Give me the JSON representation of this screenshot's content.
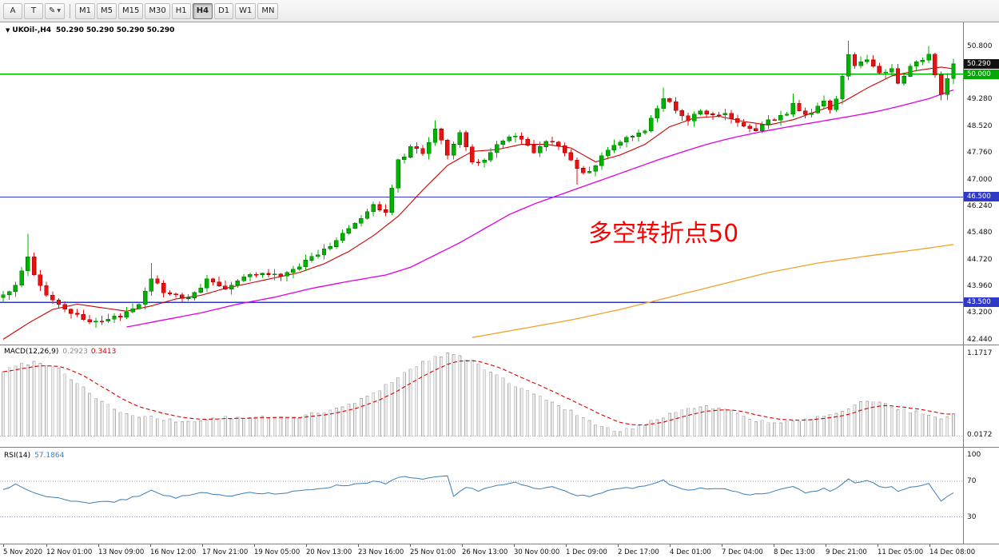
{
  "toolbar": {
    "tools": [
      {
        "name": "font-tool-button",
        "label": "A"
      },
      {
        "name": "text-tool-button",
        "label": "T"
      },
      {
        "name": "draw-tool-button",
        "label": "✎",
        "caret": "▼"
      }
    ],
    "timeframes": [
      "M1",
      "M5",
      "M15",
      "M30",
      "H1",
      "H4",
      "D1",
      "W1",
      "MN"
    ],
    "active_timeframe": "H4"
  },
  "chart_data": {
    "type": "candlestick+indicators",
    "symbol": "UKOil-",
    "timeframe": "H4",
    "title": "UKOil-,H4",
    "ohlc_readout": "50.290 50.290 50.290 50.290",
    "annotation": {
      "text": "多空转折点50",
      "color": "#FF0000"
    },
    "main": {
      "ylim": [
        42.3,
        51.45
      ],
      "axis_labels": [
        "50.800",
        "49.280",
        "48.520",
        "47.760",
        "47.000",
        "46.240",
        "45.480",
        "44.720",
        "43.960",
        "43.200",
        "42.440"
      ],
      "badges": [
        {
          "text": "50.290",
          "price": 50.29,
          "bg": "#111111"
        },
        {
          "text": "50.000",
          "price": 50.0,
          "bg": "#00A800"
        },
        {
          "text": "46.500",
          "price": 46.5,
          "bg": "#3038C8"
        },
        {
          "text": "43.500",
          "price": 43.5,
          "bg": "#3038C8"
        }
      ],
      "hlines": [
        {
          "price": 50.0,
          "color": "#00B300"
        },
        {
          "price": 46.5,
          "color": "#3038C8"
        },
        {
          "price": 43.5,
          "color": "#3038C8"
        }
      ],
      "candle_count": 155,
      "close_anchors": [
        [
          0,
          43.7
        ],
        [
          2,
          44.0
        ],
        [
          4,
          44.85
        ],
        [
          5,
          44.3
        ],
        [
          7,
          43.75
        ],
        [
          10,
          43.3
        ],
        [
          13,
          43.0
        ],
        [
          16,
          42.98
        ],
        [
          19,
          43.1
        ],
        [
          22,
          43.5
        ],
        [
          24,
          44.2
        ],
        [
          26,
          43.8
        ],
        [
          29,
          43.6
        ],
        [
          31,
          43.75
        ],
        [
          33,
          44.15
        ],
        [
          36,
          43.9
        ],
        [
          38,
          44.1
        ],
        [
          41,
          44.35
        ],
        [
          44,
          44.25
        ],
        [
          46,
          44.3
        ],
        [
          48,
          44.55
        ],
        [
          50,
          44.8
        ],
        [
          52,
          45.0
        ],
        [
          55,
          45.45
        ],
        [
          58,
          45.85
        ],
        [
          60,
          46.25
        ],
        [
          62,
          46.1
        ],
        [
          64,
          47.5
        ],
        [
          66,
          47.9
        ],
        [
          68,
          47.75
        ],
        [
          70,
          48.45
        ],
        [
          72,
          47.75
        ],
        [
          74,
          48.35
        ],
        [
          76,
          47.45
        ],
        [
          78,
          47.6
        ],
        [
          80,
          47.95
        ],
        [
          82,
          48.2
        ],
        [
          84,
          48.15
        ],
        [
          86,
          47.8
        ],
        [
          88,
          48.05
        ],
        [
          90,
          48.0
        ],
        [
          92,
          47.5
        ],
        [
          94,
          47.15
        ],
        [
          96,
          47.4
        ],
        [
          98,
          47.85
        ],
        [
          100,
          48.1
        ],
        [
          102,
          48.2
        ],
        [
          104,
          48.4
        ],
        [
          107,
          49.35
        ],
        [
          109,
          48.95
        ],
        [
          111,
          48.7
        ],
        [
          113,
          48.95
        ],
        [
          115,
          48.8
        ],
        [
          117,
          48.85
        ],
        [
          119,
          48.6
        ],
        [
          122,
          48.4
        ],
        [
          124,
          48.65
        ],
        [
          127,
          48.9
        ],
        [
          128,
          49.15
        ],
        [
          130,
          48.8
        ],
        [
          133,
          49.2
        ],
        [
          134,
          49.0
        ],
        [
          135,
          49.3
        ],
        [
          137,
          50.6
        ],
        [
          138,
          50.2
        ],
        [
          140,
          50.45
        ],
        [
          142,
          50.0
        ],
        [
          144,
          50.15
        ],
        [
          145,
          49.8
        ],
        [
          147,
          50.2
        ],
        [
          149,
          50.45
        ],
        [
          150,
          50.55
        ],
        [
          152,
          49.45
        ],
        [
          153,
          49.9
        ],
        [
          154,
          50.29
        ]
      ],
      "wick_events": [
        {
          "i": 4,
          "high": 45.45
        },
        {
          "i": 16,
          "low": 42.86
        },
        {
          "i": 24,
          "high": 44.62
        },
        {
          "i": 70,
          "high": 48.68
        },
        {
          "i": 93,
          "low": 46.85
        },
        {
          "i": 107,
          "high": 49.62
        },
        {
          "i": 128,
          "high": 49.45
        },
        {
          "i": 137,
          "high": 50.95
        },
        {
          "i": 150,
          "high": 50.8
        },
        {
          "i": 152,
          "low": 49.25
        }
      ],
      "ma_red_anchors": [
        [
          0,
          42.45
        ],
        [
          4,
          42.9
        ],
        [
          8,
          43.3
        ],
        [
          12,
          43.45
        ],
        [
          16,
          43.35
        ],
        [
          20,
          43.25
        ],
        [
          24,
          43.4
        ],
        [
          28,
          43.6
        ],
        [
          32,
          43.7
        ],
        [
          36,
          43.9
        ],
        [
          40,
          44.05
        ],
        [
          44,
          44.2
        ],
        [
          48,
          44.35
        ],
        [
          52,
          44.6
        ],
        [
          56,
          44.95
        ],
        [
          60,
          45.4
        ],
        [
          64,
          45.95
        ],
        [
          68,
          46.7
        ],
        [
          72,
          47.4
        ],
        [
          76,
          47.8
        ],
        [
          80,
          47.85
        ],
        [
          84,
          48.0
        ],
        [
          88,
          48.0
        ],
        [
          92,
          47.9
        ],
        [
          96,
          47.5
        ],
        [
          100,
          47.7
        ],
        [
          104,
          48.0
        ],
        [
          108,
          48.5
        ],
        [
          112,
          48.75
        ],
        [
          116,
          48.8
        ],
        [
          120,
          48.65
        ],
        [
          124,
          48.55
        ],
        [
          128,
          48.7
        ],
        [
          132,
          48.95
        ],
        [
          136,
          49.2
        ],
        [
          140,
          49.6
        ],
        [
          144,
          49.95
        ],
        [
          148,
          50.1
        ],
        [
          152,
          50.2
        ],
        [
          154,
          50.15
        ]
      ],
      "ma_magenta_anchors": [
        [
          20,
          42.8
        ],
        [
          26,
          43.0
        ],
        [
          32,
          43.2
        ],
        [
          38,
          43.45
        ],
        [
          44,
          43.65
        ],
        [
          50,
          43.9
        ],
        [
          56,
          44.1
        ],
        [
          62,
          44.28
        ],
        [
          66,
          44.5
        ],
        [
          70,
          44.85
        ],
        [
          74,
          45.2
        ],
        [
          78,
          45.6
        ],
        [
          82,
          46.0
        ],
        [
          86,
          46.3
        ],
        [
          90,
          46.55
        ],
        [
          94,
          46.8
        ],
        [
          98,
          47.05
        ],
        [
          102,
          47.3
        ],
        [
          106,
          47.55
        ],
        [
          110,
          47.78
        ],
        [
          114,
          48.0
        ],
        [
          118,
          48.18
        ],
        [
          122,
          48.33
        ],
        [
          126,
          48.46
        ],
        [
          130,
          48.58
        ],
        [
          134,
          48.7
        ],
        [
          138,
          48.82
        ],
        [
          142,
          48.95
        ],
        [
          146,
          49.12
        ],
        [
          150,
          49.3
        ],
        [
          154,
          49.55
        ]
      ],
      "ma_orange_anchors": [
        [
          76,
          42.5
        ],
        [
          84,
          42.75
        ],
        [
          92,
          43.0
        ],
        [
          100,
          43.3
        ],
        [
          108,
          43.65
        ],
        [
          116,
          44.0
        ],
        [
          124,
          44.35
        ],
        [
          132,
          44.62
        ],
        [
          140,
          44.82
        ],
        [
          148,
          45.0
        ],
        [
          154,
          45.15
        ]
      ],
      "colors": {
        "up": "#00B300",
        "up_edge": "#007A00",
        "down": "#E81212",
        "down_edge": "#A80000",
        "ma_red": "#CC0000",
        "ma_magenta": "#E000E0",
        "ma_orange": "#EFA42C"
      }
    },
    "macd": {
      "label": "MACD(12,26,9)",
      "value_main": "0.2923",
      "value_signal": "0.3413",
      "ylim": [
        -0.15,
        1.28
      ],
      "axis_labels": [
        {
          "text": "1.1717",
          "v": 1.1717
        },
        {
          "text": "0.0172",
          "v": 0.0172
        }
      ],
      "anchors": [
        [
          0,
          0.92
        ],
        [
          3,
          1.02
        ],
        [
          6,
          1.05
        ],
        [
          9,
          0.95
        ],
        [
          12,
          0.75
        ],
        [
          15,
          0.55
        ],
        [
          18,
          0.38
        ],
        [
          21,
          0.28
        ],
        [
          24,
          0.26
        ],
        [
          27,
          0.22
        ],
        [
          30,
          0.2
        ],
        [
          33,
          0.24
        ],
        [
          36,
          0.26
        ],
        [
          39,
          0.25
        ],
        [
          42,
          0.27
        ],
        [
          45,
          0.26
        ],
        [
          48,
          0.28
        ],
        [
          51,
          0.32
        ],
        [
          54,
          0.38
        ],
        [
          57,
          0.48
        ],
        [
          60,
          0.6
        ],
        [
          63,
          0.78
        ],
        [
          66,
          0.95
        ],
        [
          69,
          1.08
        ],
        [
          72,
          1.17
        ],
        [
          75,
          1.1
        ],
        [
          78,
          0.95
        ],
        [
          81,
          0.8
        ],
        [
          84,
          0.68
        ],
        [
          87,
          0.55
        ],
        [
          90,
          0.45
        ],
        [
          93,
          0.3
        ],
        [
          96,
          0.15
        ],
        [
          99,
          0.08
        ],
        [
          102,
          0.1
        ],
        [
          105,
          0.2
        ],
        [
          108,
          0.32
        ],
        [
          111,
          0.4
        ],
        [
          114,
          0.42
        ],
        [
          117,
          0.38
        ],
        [
          120,
          0.28
        ],
        [
          123,
          0.2
        ],
        [
          126,
          0.18
        ],
        [
          129,
          0.22
        ],
        [
          132,
          0.26
        ],
        [
          135,
          0.3
        ],
        [
          138,
          0.45
        ],
        [
          141,
          0.5
        ],
        [
          144,
          0.42
        ],
        [
          147,
          0.35
        ],
        [
          150,
          0.3
        ],
        [
          152,
          0.22
        ],
        [
          154,
          0.2923
        ]
      ],
      "colors": {
        "hist_fill": "#ECECEC",
        "hist_edge": "#AFAFAF",
        "signal": "#DD0000"
      }
    },
    "rsi": {
      "label": "RSI(14)",
      "value": "57.1864",
      "ylim": [
        0,
        107
      ],
      "levels": [
        70,
        30
      ],
      "axis_labels": [
        {
          "text": "100",
          "v": 100
        },
        {
          "text": "70",
          "v": 70
        },
        {
          "text": "30",
          "v": 30
        }
      ],
      "anchors": [
        [
          0,
          62
        ],
        [
          2,
          66
        ],
        [
          4,
          60
        ],
        [
          6,
          55
        ],
        [
          8,
          52
        ],
        [
          10,
          50
        ],
        [
          12,
          47
        ],
        [
          14,
          46
        ],
        [
          16,
          48
        ],
        [
          18,
          47
        ],
        [
          20,
          50
        ],
        [
          22,
          54
        ],
        [
          24,
          61
        ],
        [
          26,
          54
        ],
        [
          28,
          52
        ],
        [
          30,
          54
        ],
        [
          32,
          57
        ],
        [
          34,
          55
        ],
        [
          36,
          53
        ],
        [
          38,
          56
        ],
        [
          40,
          58
        ],
        [
          42,
          57
        ],
        [
          44,
          56
        ],
        [
          46,
          57
        ],
        [
          48,
          59
        ],
        [
          50,
          61
        ],
        [
          52,
          63
        ],
        [
          54,
          65
        ],
        [
          56,
          66
        ],
        [
          58,
          68
        ],
        [
          60,
          70
        ],
        [
          62,
          67
        ],
        [
          64,
          74
        ],
        [
          66,
          75
        ],
        [
          68,
          72
        ],
        [
          70,
          74
        ],
        [
          72,
          76
        ],
        [
          73,
          52
        ],
        [
          75,
          63
        ],
        [
          77,
          60
        ],
        [
          79,
          64
        ],
        [
          81,
          66
        ],
        [
          83,
          68
        ],
        [
          85,
          64
        ],
        [
          87,
          61
        ],
        [
          89,
          64
        ],
        [
          91,
          60
        ],
        [
          93,
          55
        ],
        [
          95,
          52
        ],
        [
          97,
          58
        ],
        [
          99,
          61
        ],
        [
          101,
          62
        ],
        [
          103,
          63
        ],
        [
          105,
          66
        ],
        [
          107,
          71
        ],
        [
          109,
          63
        ],
        [
          111,
          60
        ],
        [
          113,
          63
        ],
        [
          115,
          61
        ],
        [
          117,
          61
        ],
        [
          119,
          57
        ],
        [
          121,
          54
        ],
        [
          123,
          56
        ],
        [
          125,
          59
        ],
        [
          127,
          62
        ],
        [
          128,
          65
        ],
        [
          130,
          57
        ],
        [
          132,
          60
        ],
        [
          133,
          63
        ],
        [
          134,
          59
        ],
        [
          135,
          62
        ],
        [
          137,
          74
        ],
        [
          138,
          69
        ],
        [
          140,
          72
        ],
        [
          142,
          63
        ],
        [
          144,
          65
        ],
        [
          145,
          59
        ],
        [
          147,
          63
        ],
        [
          149,
          66
        ],
        [
          150,
          67
        ],
        [
          152,
          47
        ],
        [
          153,
          53
        ],
        [
          154,
          57.19
        ]
      ],
      "color": "#3D7EB8"
    },
    "time_axis": [
      "5 Nov 2020",
      "12 Nov 01:00",
      "13 Nov 09:00",
      "16 Nov 12:00",
      "17 Nov 21:00",
      "19 Nov 05:00",
      "20 Nov 13:00",
      "23 Nov 16:00",
      "25 Nov 01:00",
      "26 Nov 13:00",
      "30 Nov 00:00",
      "1 Dec 09:00",
      "2 Dec 17:00",
      "4 Dec 01:00",
      "7 Dec 04:00",
      "8 Dec 13:00",
      "9 Dec 21:00",
      "11 Dec 05:00",
      "14 Dec 08:00"
    ]
  }
}
